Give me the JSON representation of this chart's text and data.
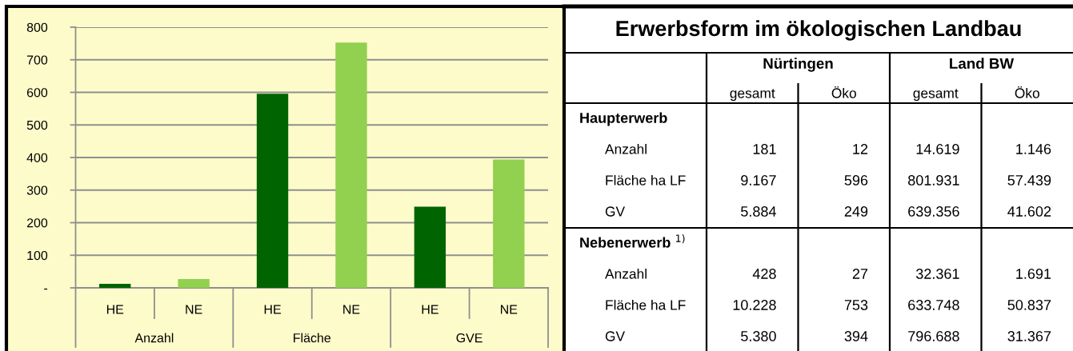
{
  "chart_data": [
    {
      "type": "bar",
      "categories": [
        "HE",
        "NE",
        "HE",
        "NE",
        "HE",
        "NE"
      ],
      "values": [
        12,
        27,
        596,
        753,
        249,
        394
      ],
      "colors": [
        "#006400",
        "#92d050",
        "#006400",
        "#92d050",
        "#006400",
        "#92d050"
      ],
      "ylim": [
        0,
        800
      ],
      "yticks": [
        {
          "value": 0,
          "label": "-"
        },
        100,
        200,
        300,
        400,
        500,
        600,
        700,
        800
      ],
      "grid": "y",
      "annotations": [
        "Anzahl",
        "Fläche",
        "GVE"
      ]
    },
    {
      "type": "other",
      "title": "Erwerbsform im ökologischen Landbau",
      "annotations": [
        "Nürtingen",
        "Land BW"
      ],
      "categories": [
        "gesamt",
        "Öko",
        "gesamt",
        "Öko"
      ],
      "y_categories": [
        "Haupterwerb",
        "Anzahl",
        "Fläche ha LF",
        "GV",
        "Nebenerwerb $^{1)}$",
        "Anzahl",
        "Fläche ha LF",
        "GV"
      ],
      "cell_labels": [
        [
          null,
          null,
          null,
          null
        ],
        [
          "181",
          "12",
          "14.619",
          "1.146"
        ],
        [
          "9.167",
          "596",
          "801.931",
          "57.439"
        ],
        [
          "5.884",
          "249",
          "639.356",
          "41.602"
        ],
        [
          null,
          null,
          null,
          null
        ],
        [
          "428",
          "27",
          "32.361",
          "1.691"
        ],
        [
          "10.228",
          "753",
          "633.748",
          "50.837"
        ],
        [
          "5.380",
          "394",
          "796.688",
          "31.367"
        ]
      ]
    }
  ]
}
